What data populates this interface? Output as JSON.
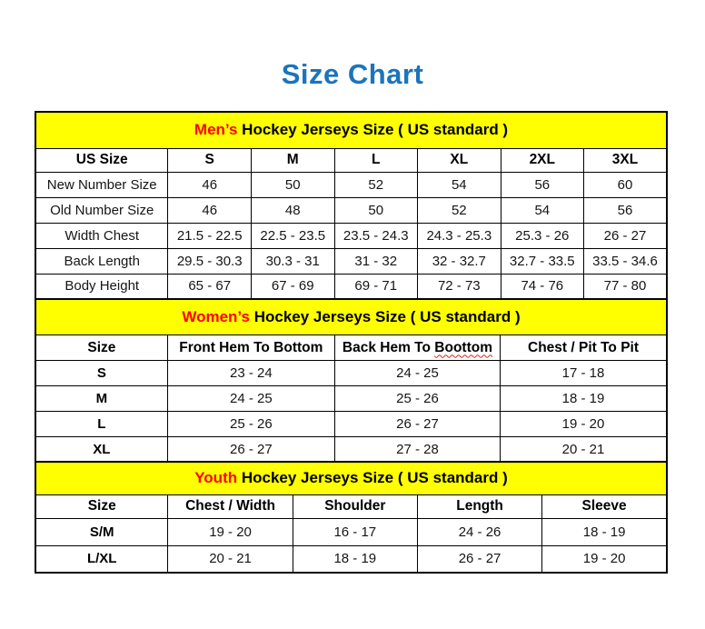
{
  "page": {
    "title": "Size Chart",
    "title_color": "#1b74bd"
  },
  "colors": {
    "band_bg": "#ffff00",
    "accent_red": "#ff0000",
    "border": "#000000"
  },
  "chart_data": [
    {
      "type": "table",
      "id": "mens",
      "band_highlight": "Men’s",
      "band_rest": " Hockey Jerseys Size ( US standard )",
      "columns": [
        "US Size",
        "S",
        "M",
        "L",
        "XL",
        "2XL",
        "3XL"
      ],
      "rows": [
        {
          "label": "New Number Size",
          "values": [
            "46",
            "50",
            "52",
            "54",
            "56",
            "60"
          ]
        },
        {
          "label": "Old Number Size",
          "values": [
            "46",
            "48",
            "50",
            "52",
            "54",
            "56"
          ]
        },
        {
          "label": "Width Chest",
          "values": [
            "21.5 - 22.5",
            "22.5 - 23.5",
            "23.5 - 24.3",
            "24.3 - 25.3",
            "25.3 - 26",
            "26 - 27"
          ]
        },
        {
          "label": "Back Length",
          "values": [
            "29.5 - 30.3",
            "30.3 - 31",
            "31 - 32",
            "32 - 32.7",
            "32.7 - 33.5",
            "33.5 - 34.6"
          ]
        },
        {
          "label": "Body Height",
          "values": [
            "65 - 67",
            "67 - 69",
            "69 - 71",
            "72 - 73",
            "74 - 76",
            "77 - 80"
          ]
        }
      ]
    },
    {
      "type": "table",
      "id": "womens",
      "band_highlight": "Women’s",
      "band_rest": " Hockey Jerseys Size ( US standard )",
      "columns": [
        "Size",
        "Front Hem To Bottom",
        "Back Hem To Boottom",
        "Chest / Pit To Pit"
      ],
      "squiggle_word": "Boottom",
      "rows": [
        {
          "label": "S",
          "values": [
            "23 - 24",
            "24 - 25",
            "17 - 18"
          ]
        },
        {
          "label": "M",
          "values": [
            "24 - 25",
            "25 - 26",
            "18 - 19"
          ]
        },
        {
          "label": "L",
          "values": [
            "25 - 26",
            "26 - 27",
            "19 - 20"
          ]
        },
        {
          "label": "XL",
          "values": [
            "26 - 27",
            "27 - 28",
            "20 - 21"
          ]
        }
      ]
    },
    {
      "type": "table",
      "id": "youth",
      "band_highlight": "Youth",
      "band_rest": " Hockey Jerseys Size ( US standard )",
      "columns": [
        "Size",
        "Chest / Width",
        "Shoulder",
        "Length",
        "Sleeve"
      ],
      "rows": [
        {
          "label": "S/M",
          "values": [
            "19 - 20",
            "16 - 17",
            "24 - 26",
            "18 - 19"
          ]
        },
        {
          "label": "L/XL",
          "values": [
            "20 - 21",
            "18 - 19",
            "26 - 27",
            "19 - 20"
          ]
        }
      ]
    }
  ]
}
